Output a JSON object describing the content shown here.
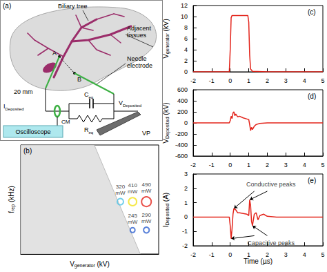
{
  "diagram": {
    "panel": "(a)",
    "biliary_tree": "Biliary tree",
    "adjacent_tissues": "Adjacent tissues",
    "needle_electrode": "Needle electrode",
    "point_a": "A",
    "point_b": "B",
    "distance": "20 mm",
    "current_monitor": "CM",
    "capacitor": "Ceq",
    "resistor": "Req",
    "oscilloscope": "Oscilloscope",
    "voltage_probe": "VP",
    "current": "IDeposited",
    "voltage": "VDeposited"
  },
  "chart_data": [
    {
      "type": "scatter",
      "panel": "(b)",
      "x_label": "Vgenerator (kV)",
      "y_label": "frep (kHz)",
      "xlim": [
        2,
        11
      ],
      "ylim": [
        0,
        10
      ],
      "tick_labels": false,
      "grid": false,
      "marker": "circle",
      "x": [
        8.5,
        9.3,
        10.2,
        9.3,
        10.2
      ],
      "values": [
        4.8,
        4.8,
        4.8,
        2.2,
        2.2
      ],
      "power_mW": [
        320,
        410,
        490,
        245,
        290
      ],
      "point_labels": [
        "320 mW",
        "410 mW",
        "490 mW",
        "245 mW",
        "290 mW"
      ],
      "colors": [
        "#4fc3e6",
        "#f2e21b",
        "#e3241b",
        "#2f62d0",
        "#2f62d0"
      ],
      "shaded_region": [
        [
          2,
          0
        ],
        [
          2,
          10
        ],
        [
          6.8,
          10
        ],
        [
          9.8,
          0
        ]
      ]
    },
    {
      "type": "line",
      "panel": "(c)",
      "y_label": "Vgenerator (kV)",
      "xlim": [
        -2,
        5
      ],
      "xticks": [
        -2,
        -1,
        0,
        1,
        2,
        3,
        4,
        5
      ],
      "ylim": [
        0,
        12
      ],
      "yticks": [
        0,
        2,
        4,
        6,
        8,
        10,
        12
      ],
      "grid": false,
      "color": "#e3241b",
      "x": [
        -2,
        -0.05,
        0,
        0.05,
        0.1,
        0.5,
        0.95,
        1.0,
        1.05,
        1.1,
        1.2,
        2,
        3,
        4,
        5
      ],
      "values": [
        0,
        0,
        4,
        9.8,
        10.2,
        10.2,
        10.2,
        9,
        3,
        0.5,
        0.1,
        0,
        0,
        0,
        0
      ]
    },
    {
      "type": "line",
      "panel": "(d)",
      "y_label": "VDeposited (kV)",
      "xlim": [
        -2,
        5
      ],
      "xticks": [
        -2,
        -1,
        0,
        1,
        2,
        3,
        4,
        5
      ],
      "ylim": [
        -600,
        600
      ],
      "yticks": [
        -600,
        -400,
        -200,
        0,
        200,
        400,
        600
      ],
      "grid": false,
      "color": "#e3241b",
      "x": [
        -2,
        -0.05,
        0,
        0.05,
        0.1,
        0.15,
        0.2,
        0.25,
        0.3,
        0.4,
        0.5,
        0.7,
        0.9,
        1.0,
        1.05,
        1.1,
        1.15,
        1.2,
        1.3,
        1.4,
        1.6,
        2,
        3,
        5
      ],
      "values": [
        0,
        0,
        40,
        120,
        80,
        180,
        200,
        130,
        160,
        110,
        120,
        90,
        70,
        60,
        -30,
        -140,
        -80,
        -120,
        -60,
        -30,
        -10,
        0,
        0,
        0
      ]
    },
    {
      "type": "line",
      "panel": "(e)",
      "x_label": "Time (µs)",
      "y_label": "IDeposited (A)",
      "xlim": [
        -2,
        5
      ],
      "xticks": [
        -2,
        -1,
        0,
        1,
        2,
        3,
        4,
        5
      ],
      "ylim": [
        -2,
        3
      ],
      "yticks": [
        -2,
        -1,
        0,
        1,
        2,
        3
      ],
      "grid": false,
      "color": "#e3241b",
      "x": [
        -2,
        -0.05,
        0,
        0.05,
        0.1,
        0.15,
        0.2,
        0.3,
        0.4,
        0.5,
        0.7,
        0.9,
        1.0,
        1.05,
        1.1,
        1.15,
        1.2,
        1.3,
        1.4,
        1.5,
        1.6,
        1.8,
        2.0,
        2.5,
        3,
        5
      ],
      "values": [
        0,
        0,
        -0.6,
        -1.5,
        -0.8,
        0.2,
        0.6,
        0.5,
        0.3,
        0.3,
        0.25,
        0.2,
        0.1,
        1.2,
        0.8,
        -0.3,
        -0.6,
        0.2,
        0.3,
        -0.2,
        0.1,
        0.2,
        0.05,
        0,
        0,
        0
      ],
      "annotations": [
        {
          "text": "Conductive peaks",
          "x": 2.2,
          "y": 2.3,
          "targets": [
            [
              0.2,
              0.6
            ],
            [
              1.05,
              1.2
            ]
          ]
        },
        {
          "text": "Capacitive peaks",
          "x": 2.2,
          "y": -1.8,
          "targets": [
            [
              0.05,
              -1.5
            ],
            [
              1.2,
              -0.6
            ]
          ]
        }
      ]
    }
  ]
}
